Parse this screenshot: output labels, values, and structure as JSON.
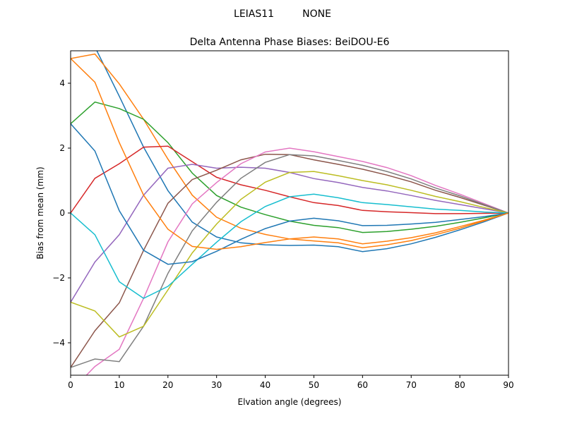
{
  "chart_data": {
    "type": "line",
    "suptitle": "LEIAS11         NONE",
    "title": "Delta Antenna Phase Biases: BeiDOU-E6",
    "xlabel": "Elvation angle (degrees)",
    "ylabel": "Bias from mean (mm)",
    "xlim": [
      0,
      90
    ],
    "ylim": [
      -5,
      5
    ],
    "xticks": [
      0,
      10,
      20,
      30,
      40,
      50,
      60,
      70,
      80,
      90
    ],
    "yticks": [
      -4,
      -2,
      0,
      2,
      4
    ],
    "grid": false,
    "x": [
      0,
      5,
      10,
      15,
      20,
      25,
      30,
      35,
      40,
      45,
      50,
      55,
      60,
      65,
      70,
      75,
      80,
      85,
      90
    ],
    "colors": [
      "#1f77b4",
      "#ff7f0e",
      "#2ca02c",
      "#d62728",
      "#9467bd",
      "#8c564b",
      "#e377c2",
      "#7f7f7f",
      "#bcbd22",
      "#17becf"
    ],
    "series": [
      {
        "values": [
          5.5,
          5.12,
          3.6,
          2.03,
          0.69,
          -0.28,
          -0.74,
          -0.92,
          -0.98,
          -1,
          -0.99,
          -1.04,
          -1.19,
          -1.1,
          -0.95,
          -0.75,
          -0.52,
          -0.27,
          0
        ]
      },
      {
        "values": [
          4.76,
          4.9,
          3.98,
          2.89,
          1.66,
          0.55,
          -0.13,
          -0.47,
          -0.66,
          -0.8,
          -0.86,
          -0.92,
          -1.07,
          -0.98,
          -0.85,
          -0.67,
          -0.47,
          -0.24,
          0
        ]
      },
      {
        "values": [
          2.75,
          3.42,
          3.22,
          2.89,
          2.17,
          1.23,
          0.54,
          0.18,
          -0.05,
          -0.25,
          -0.38,
          -0.45,
          -0.6,
          -0.57,
          -0.5,
          -0.41,
          -0.29,
          -0.15,
          0
        ]
      },
      {
        "values": [
          0,
          1.07,
          1.52,
          2.03,
          2.06,
          1.58,
          1.1,
          0.87,
          0.7,
          0.5,
          0.32,
          0.23,
          0.08,
          0.04,
          0.01,
          -0.02,
          -0.02,
          -0.01,
          0
        ]
      },
      {
        "values": [
          -2.75,
          -1.51,
          -0.67,
          0.55,
          1.38,
          1.5,
          1.38,
          1.41,
          1.38,
          1.25,
          1.06,
          0.94,
          0.79,
          0.68,
          0.54,
          0.39,
          0.26,
          0.13,
          0
        ]
      },
      {
        "values": [
          -4.76,
          -3.63,
          -2.77,
          -1.15,
          0.3,
          1.03,
          1.32,
          1.64,
          1.81,
          1.8,
          1.64,
          1.5,
          1.35,
          1.17,
          0.96,
          0.7,
          0.48,
          0.24,
          0
        ]
      },
      {
        "values": [
          -5.5,
          -4.73,
          -4.2,
          -2.63,
          -0.89,
          0.28,
          0.94,
          1.52,
          1.88,
          2,
          1.89,
          1.74,
          1.59,
          1.4,
          1.15,
          0.85,
          0.58,
          0.29,
          0
        ]
      },
      {
        "values": [
          -4.76,
          -4.5,
          -4.58,
          -3.49,
          -1.86,
          -0.55,
          0.33,
          1.07,
          1.56,
          1.8,
          1.76,
          1.62,
          1.47,
          1.28,
          1.05,
          0.77,
          0.53,
          0.26,
          0
        ]
      },
      {
        "values": [
          -2.75,
          -3.02,
          -3.82,
          -3.49,
          -2.37,
          -1.23,
          -0.34,
          0.42,
          0.95,
          1.25,
          1.28,
          1.15,
          1,
          0.87,
          0.7,
          0.51,
          0.35,
          0.17,
          0
        ]
      },
      {
        "values": [
          0,
          -0.67,
          -2.12,
          -2.63,
          -2.26,
          -1.58,
          -0.9,
          -0.27,
          0.2,
          0.5,
          0.58,
          0.47,
          0.32,
          0.26,
          0.19,
          0.12,
          0.08,
          0.03,
          0
        ]
      },
      {
        "values": [
          2.75,
          1.91,
          0.07,
          -1.15,
          -1.58,
          -1.5,
          -1.18,
          -0.81,
          -0.48,
          -0.25,
          -0.16,
          -0.24,
          -0.39,
          -0.38,
          -0.34,
          -0.29,
          -0.2,
          -0.11,
          0
        ]
      },
      {
        "values": [
          4.76,
          4.03,
          2.17,
          0.55,
          -0.5,
          -1.03,
          -1.12,
          -1.04,
          -0.91,
          -0.8,
          -0.74,
          -0.8,
          -0.95,
          -0.87,
          -0.76,
          -0.61,
          -0.42,
          -0.22,
          0
        ]
      }
    ]
  }
}
